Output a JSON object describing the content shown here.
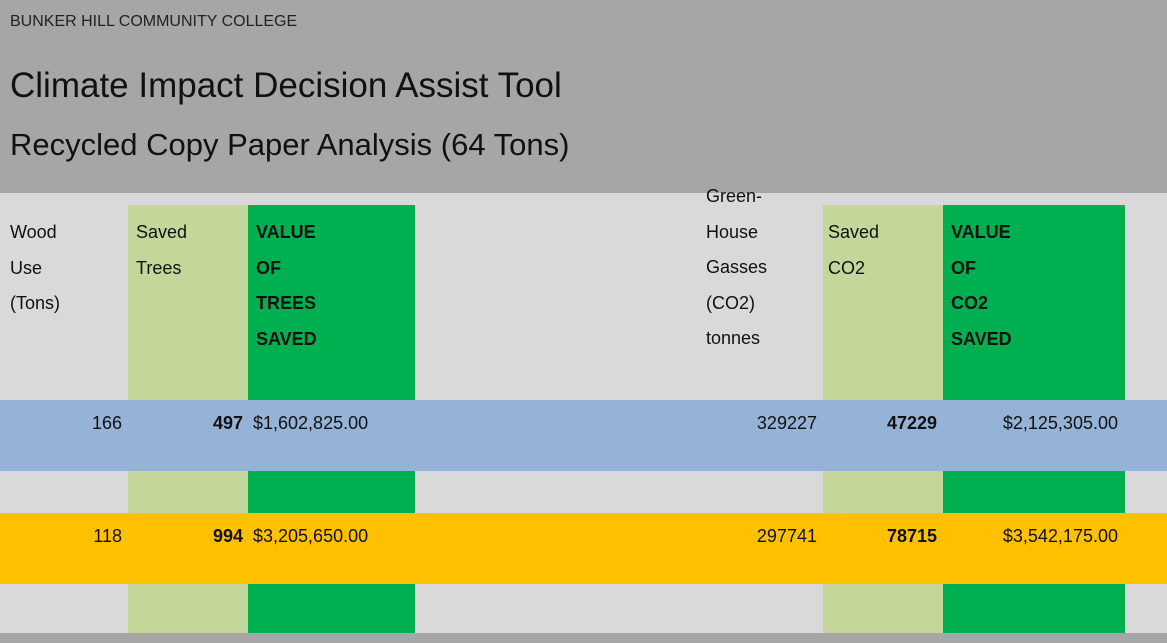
{
  "header": {
    "org": "BUNKER HILL COMMUNITY COLLEGE",
    "title": "Climate Impact Decision Assist Tool",
    "subtitle": "Recycled Copy Paper Analysis (64 Tons)"
  },
  "table": {
    "columns": [
      [
        "Wood",
        "Use",
        "(Tons)"
      ],
      [
        "Saved",
        "Trees"
      ],
      [
        "VALUE",
        "OF",
        "TREES",
        "SAVED"
      ],
      [
        "Green-",
        "House",
        "Gasses",
        "(CO2)",
        "tonnes"
      ],
      [
        "Saved",
        "CO2"
      ],
      [
        "VALUE",
        "OF",
        "CO2",
        "SAVED"
      ]
    ],
    "rows": [
      [
        "166",
        "497",
        "$1,602,825.00",
        "329227",
        "47229",
        "$2,125,305.00"
      ],
      [
        "118",
        "994",
        "$3,205,650.00",
        "297741",
        "78715",
        "$3,542,175.00"
      ]
    ]
  }
}
